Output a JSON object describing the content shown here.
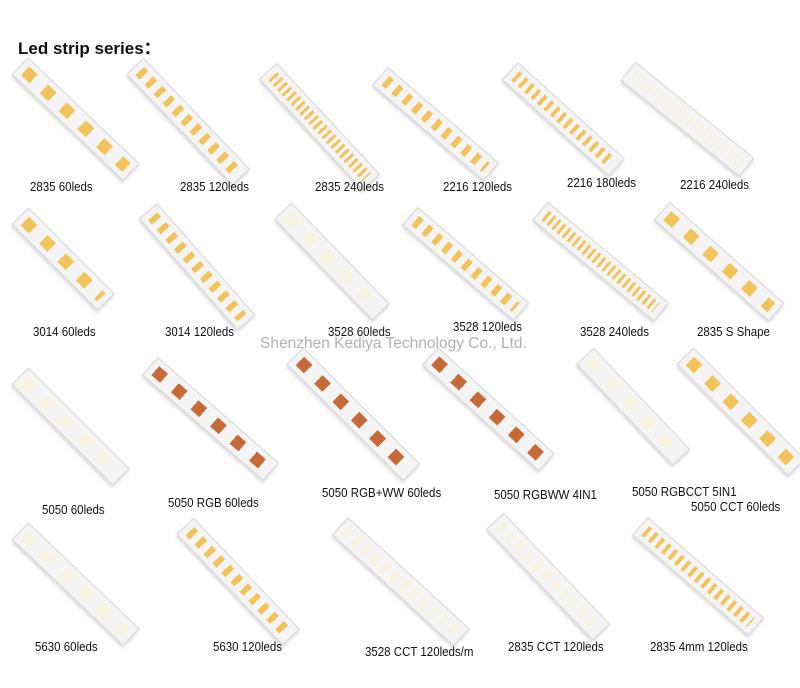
{
  "title": "Led strip series：",
  "watermark": "Shenzhen Kediya Technology Co., Ltd.",
  "colors": {
    "warm_led": "#f1c35a",
    "white_led": "#f7f3df",
    "rgb_led": "#c66a3a",
    "pcb": "#f4f4f4"
  },
  "products": [
    {
      "label": "2835  60leds",
      "led": "warm",
      "density": 1
    },
    {
      "label": "2835  120leds",
      "led": "warm",
      "density": 2
    },
    {
      "label": "2835  240leds",
      "led": "warm",
      "density": 4
    },
    {
      "label": "2216 120leds",
      "led": "warm",
      "density": 2
    },
    {
      "label": "2216 180leds",
      "led": "warm",
      "density": 3
    },
    {
      "label": "2216 240leds",
      "led": "white",
      "density": 4
    },
    {
      "label": "3014  60leds",
      "led": "warm",
      "density": 1
    },
    {
      "label": "3014  120leds",
      "led": "warm",
      "density": 2
    },
    {
      "label": "3528  60leds",
      "led": "white",
      "density": 1
    },
    {
      "label": "3528  120leds",
      "led": "warm",
      "density": 2
    },
    {
      "label": "3528 240leds",
      "led": "warm",
      "density": 4
    },
    {
      "label": "2835  S Shape",
      "led": "warm",
      "density": 1
    },
    {
      "label": "5050  60leds",
      "led": "white",
      "density": 1
    },
    {
      "label": "5050 RGB 60leds",
      "led": "rgb",
      "density": 1
    },
    {
      "label": "5050  RGB+WW 60leds",
      "led": "rgb",
      "density": 1
    },
    {
      "label": "5050 RGBWW 4IN1",
      "led": "rgb",
      "density": 1
    },
    {
      "label": "5050 RGBCCT 5IN1",
      "led": "white",
      "density": 1
    },
    {
      "label": "5050 CCT 60leds",
      "led": "warm",
      "density": 1
    },
    {
      "label": "5630  60leds",
      "led": "white",
      "density": 1
    },
    {
      "label": "5630  120leds",
      "led": "warm",
      "density": 2
    },
    {
      "label": "3528 CCT 120leds/m",
      "led": "white",
      "density": 2
    },
    {
      "label": "2835   CCT 120leds",
      "led": "white",
      "density": 2
    },
    {
      "label": "2835   4mm 120leds",
      "led": "warm",
      "density": 3
    }
  ]
}
